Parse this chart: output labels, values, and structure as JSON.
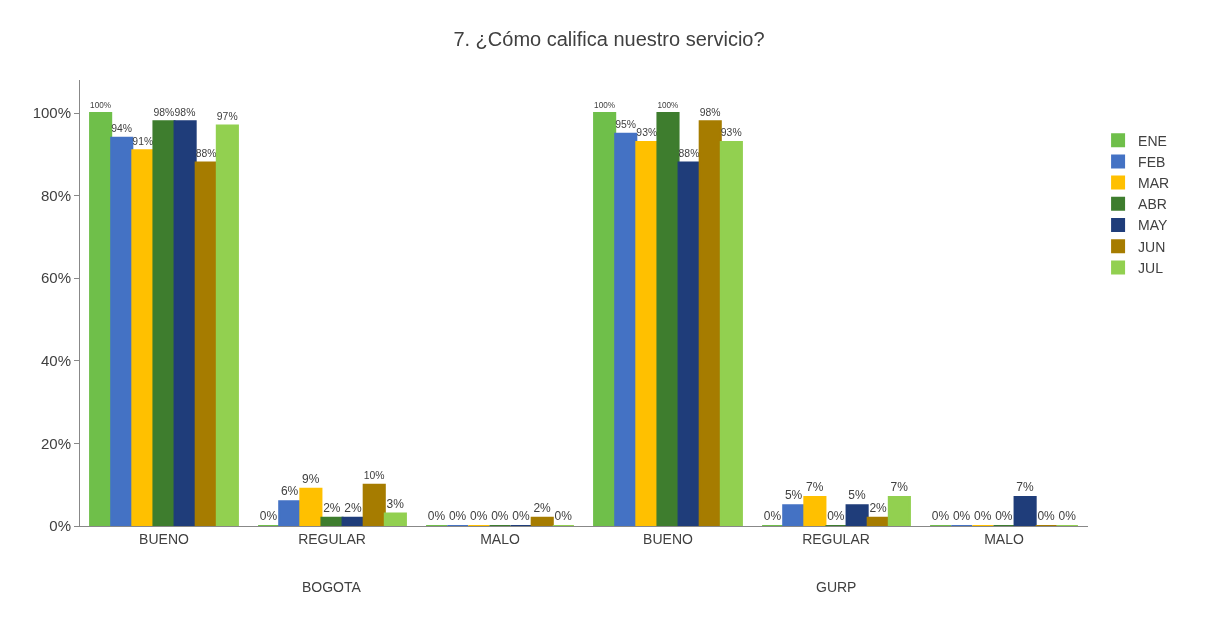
{
  "chart_data": {
    "type": "bar",
    "title": "7. ¿Cómo califica nuestro servicio?",
    "categories": [
      "BUENO",
      "REGULAR",
      "MALO",
      "BUENO",
      "REGULAR",
      "MALO"
    ],
    "annotations": [
      "BOGOTA",
      "GURP"
    ],
    "series": [
      {
        "name": "ENE",
        "color": "#6fbf4a",
        "values": [
          100,
          0,
          0,
          100,
          0,
          0
        ],
        "value_labels": [
          "100%",
          "0%",
          "0%",
          "100%",
          "0%",
          "0%"
        ]
      },
      {
        "name": "FEB",
        "color": "#4472c4",
        "values": [
          94,
          6,
          0,
          95,
          5,
          0
        ],
        "value_labels": [
          "94%",
          "6%",
          "0%",
          "95%",
          "5%",
          "0%"
        ]
      },
      {
        "name": "MAR",
        "color": "#ffc000",
        "values": [
          91,
          9,
          0,
          93,
          7,
          0
        ],
        "value_labels": [
          "91%",
          "9%",
          "0%",
          "93%",
          "7%",
          "0%"
        ]
      },
      {
        "name": "ABR",
        "color": "#3e7d2e",
        "values": [
          98,
          2,
          0,
          100,
          0,
          0
        ],
        "value_labels": [
          "98%",
          "2%",
          "0%",
          "100%",
          "0%",
          "0%"
        ]
      },
      {
        "name": "MAY",
        "color": "#1f3d7a",
        "values": [
          98,
          2,
          0,
          88,
          5,
          7
        ],
        "value_labels": [
          "98%",
          "2%",
          "0%",
          "88%",
          "5%",
          "7%"
        ]
      },
      {
        "name": "JUN",
        "color": "#a67c00",
        "values": [
          88,
          10,
          2,
          98,
          2,
          0
        ],
        "value_labels": [
          "88%",
          "10%",
          "2%",
          "98%",
          "2%",
          "0%"
        ]
      },
      {
        "name": "JUL",
        "color": "#92d050",
        "values": [
          97,
          3,
          0,
          93,
          7,
          0
        ],
        "value_labels": [
          "97%",
          "3%",
          "0%",
          "93%",
          "7%",
          "0%"
        ]
      }
    ],
    "ylim": [
      0,
      108
    ],
    "yticks": [
      {
        "value": 0,
        "label": "0%"
      },
      {
        "value": 20,
        "label": "20%"
      },
      {
        "value": 40,
        "label": "40%"
      },
      {
        "value": 60,
        "label": "60%"
      },
      {
        "value": 80,
        "label": "80%"
      },
      {
        "value": 100,
        "label": "100%"
      }
    ],
    "grid": false,
    "legend": "right"
  }
}
